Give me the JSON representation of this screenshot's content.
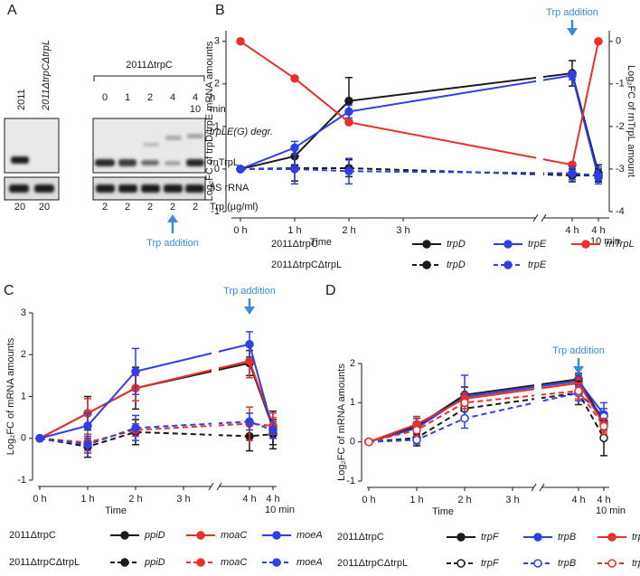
{
  "panels": [
    "A",
    "B",
    "C",
    "D"
  ],
  "gel": {
    "lanes_left": [
      "2011",
      "2011ΔtrpCΔtrpL"
    ],
    "strain_right": "2011ΔtrpC",
    "time_labels": [
      "0",
      "1",
      "2",
      "4",
      "4"
    ],
    "time_unit": "h",
    "time_labels_2": [
      "10"
    ],
    "time_unit_2": "min",
    "band_labels": [
      "trpLE(G) degr.",
      "rnTrpL",
      "5S rRNA"
    ],
    "trp_values": [
      20,
      20,
      2,
      2,
      2,
      2,
      2
    ],
    "trp_label": "Trp  (µg/ml)",
    "annotation": "Trp addition"
  },
  "chart_data": [
    {
      "type": "line",
      "x_label": "Time",
      "y_label": "Log₂FC of trpD/trpE mRNA amounts",
      "y2_label": "Log₂FC of rnTrpL amount",
      "annotation": "Trp addition",
      "annotation_color": "#3b8be0",
      "legend_rows": [
        "2011ΔtrpC",
        "2011ΔtrpCΔtrpL"
      ],
      "x": [
        0,
        1,
        2,
        4,
        4.1667
      ],
      "xlim": [
        0,
        4.1667
      ],
      "xticks": [
        {
          "value": 0,
          "label": "0 h"
        },
        {
          "value": 1,
          "label": "1 h"
        },
        {
          "value": 2,
          "label": "2 h"
        },
        {
          "value": 3,
          "label": "3 h"
        },
        {
          "value": 4,
          "label": "4 h"
        },
        {
          "value": 4.1667,
          "label": "4 h 10 min"
        }
      ],
      "ylim": [
        -1,
        3.25
      ],
      "yticks": [
        -1,
        0,
        1,
        2,
        3
      ],
      "y2lim": [
        -4,
        0.25
      ],
      "y2ticks": [
        -4,
        -3,
        -2,
        -1,
        0
      ],
      "series": [
        {
          "name": "trpD",
          "color": "#1a1a1a",
          "dashed": false,
          "values": [
            0,
            0.3,
            1.6,
            2.25,
            -0.1
          ],
          "errors": [
            0,
            0.2,
            0.55,
            0.3,
            0.2
          ]
        },
        {
          "name": "trpE",
          "color": "#2e3fe6",
          "dashed": false,
          "values": [
            0,
            0.5,
            1.35,
            2.2,
            -0.2
          ],
          "errors": [
            0,
            0.15,
            0.15,
            0.1,
            0.1
          ]
        },
        {
          "name": "rnTrpL",
          "color": "#e8302a",
          "dashed": false,
          "axis": "y2",
          "values": [
            0,
            -0.87,
            -1.9,
            -2.9,
            0
          ],
          "errors": [
            0,
            0.03,
            0.05,
            0.05,
            0.03
          ]
        },
        {
          "name": "trpD",
          "color": "#1a1a1a",
          "dashed": true,
          "values": [
            0,
            0.02,
            0.02,
            -0.15,
            -0.15
          ],
          "errors": [
            0,
            0.3,
            0.2,
            0.15,
            0.15
          ]
        },
        {
          "name": "trpE",
          "color": "#2e3fe6",
          "dashed": true,
          "values": [
            0,
            0,
            -0.05,
            -0.1,
            -0.15
          ],
          "errors": [
            0,
            0.35,
            0.3,
            0.15,
            0.2
          ]
        }
      ]
    },
    {
      "type": "line",
      "x_label": "Time",
      "y_label": "Log₂FC of mRNA amounts",
      "annotation": "Trp addition",
      "annotation_color": "#3b8be0",
      "legend_rows": [
        "2011ΔtrpC",
        "2011ΔtrpCΔtrpL"
      ],
      "x": [
        0,
        1,
        2,
        4,
        4.1667
      ],
      "xlim": [
        0,
        4.1667
      ],
      "xticks": [
        {
          "value": 0,
          "label": "0 h"
        },
        {
          "value": 1,
          "label": "1 h"
        },
        {
          "value": 2,
          "label": "2 h"
        },
        {
          "value": 3,
          "label": "3 h"
        },
        {
          "value": 4,
          "label": "4 h"
        },
        {
          "value": 4.1667,
          "label": "4 h 10 min"
        }
      ],
      "ylim": [
        -1,
        3
      ],
      "yticks": [
        -1,
        0,
        1,
        2,
        3
      ],
      "series": [
        {
          "name": "ppiD",
          "color": "#1a1a1a",
          "dashed": false,
          "values": [
            0,
            0.6,
            1.2,
            1.8,
            0.25
          ],
          "errors": [
            0,
            0.4,
            0.5,
            0.3,
            0.4
          ]
        },
        {
          "name": "moaC",
          "color": "#e8302a",
          "dashed": false,
          "values": [
            0,
            0.6,
            1.2,
            1.85,
            0.3
          ],
          "errors": [
            0,
            0.35,
            0.3,
            0.4,
            0.3
          ]
        },
        {
          "name": "moeA",
          "color": "#2e3fe6",
          "dashed": false,
          "values": [
            0,
            0.3,
            1.6,
            2.25,
            0.2
          ],
          "errors": [
            0,
            0.3,
            0.55,
            0.3,
            0.2
          ]
        },
        {
          "name": "ppiD",
          "color": "#1a1a1a",
          "dashed": true,
          "values": [
            0,
            -0.2,
            0.15,
            0.05,
            0.1
          ],
          "errors": [
            0,
            0.25,
            0.3,
            0.35,
            0.35
          ]
        },
        {
          "name": "moaC",
          "color": "#e8302a",
          "dashed": true,
          "values": [
            0,
            -0.1,
            0.2,
            0.35,
            0.3
          ],
          "errors": [
            0,
            0.2,
            0.15,
            0.4,
            0.2
          ]
        },
        {
          "name": "moeA",
          "color": "#2e3fe6",
          "dashed": true,
          "values": [
            0,
            -0.15,
            0.25,
            0.4,
            0.2
          ],
          "errors": [
            0,
            0.2,
            0.3,
            0.2,
            0.2
          ]
        }
      ]
    },
    {
      "type": "line",
      "x_label": "Time",
      "y_label": "Log₂FC of mRNA amounts",
      "annotation": "Trp addition",
      "annotation_color": "#3b8be0",
      "legend_rows": [
        "2011ΔtrpC",
        "2011ΔtrpCΔtrpL"
      ],
      "x": [
        0,
        1,
        2,
        4,
        4.1667
      ],
      "xlim": [
        0,
        4.1667
      ],
      "xticks": [
        {
          "value": 0,
          "label": "0 h"
        },
        {
          "value": 1,
          "label": "1 h"
        },
        {
          "value": 2,
          "label": "2 h"
        },
        {
          "value": 3,
          "label": "3 h"
        },
        {
          "value": 4,
          "label": "4 h"
        },
        {
          "value": 4.1667,
          "label": "4 h 10 min"
        }
      ],
      "ylim": [
        -1,
        2
      ],
      "yticks": [
        -1,
        0,
        1,
        2
      ],
      "series": [
        {
          "name": "trpF",
          "color": "#1a1a1a",
          "dashed": false,
          "values": [
            0,
            0.4,
            1.2,
            1.6,
            0.5
          ],
          "errors": [
            0,
            0.2,
            0.2,
            0.15,
            0.2
          ]
        },
        {
          "name": "trpB",
          "color": "#2e3fe6",
          "dashed": false,
          "values": [
            0,
            0.35,
            1.15,
            1.55,
            0.7
          ],
          "errors": [
            0,
            0.25,
            0.55,
            0.15,
            0.3
          ]
        },
        {
          "name": "trpA",
          "color": "#e8302a",
          "dashed": false,
          "values": [
            0,
            0.45,
            1.1,
            1.5,
            0.45
          ],
          "errors": [
            0,
            0.2,
            0.15,
            0.15,
            0.2
          ]
        },
        {
          "name": "trpF",
          "color": "#1a1a1a",
          "dashed": true,
          "marker": "open",
          "values": [
            0,
            0.1,
            0.85,
            1.25,
            0.1
          ],
          "errors": [
            0,
            0.2,
            0.2,
            0.3,
            0.45
          ]
        },
        {
          "name": "trpB",
          "color": "#2e3fe6",
          "dashed": true,
          "marker": "open",
          "values": [
            0,
            0.05,
            0.6,
            1.25,
            0.65
          ],
          "errors": [
            0,
            0.1,
            0.25,
            0.2,
            0.2
          ]
        },
        {
          "name": "trpA",
          "color": "#e8302a",
          "dashed": true,
          "marker": "open",
          "values": [
            0,
            0.3,
            1.0,
            1.3,
            0.4
          ],
          "errors": [
            0,
            0.15,
            0.15,
            0.2,
            0.2
          ]
        }
      ]
    }
  ]
}
